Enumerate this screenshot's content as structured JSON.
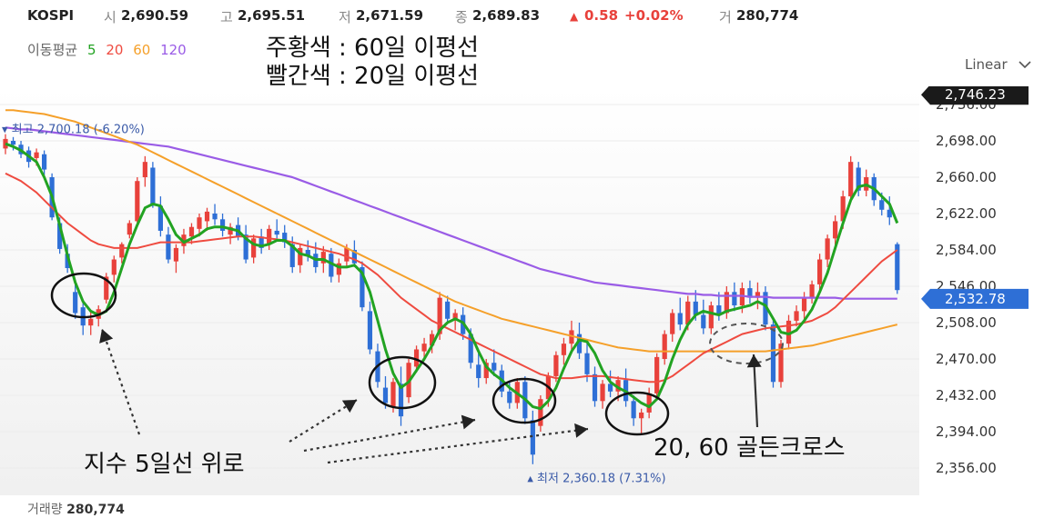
{
  "header": {
    "ticker": "KOSPI",
    "open_label": "시",
    "open": "2,690.59",
    "high_label": "고",
    "high": "2,695.51",
    "low_label": "저",
    "low": "2,671.59",
    "close_label": "종",
    "close": "2,689.83",
    "change_arrow": "▲",
    "change": "0.58",
    "change_pct": "+0.02%",
    "volume_label": "거",
    "volume": "280,774"
  },
  "ma_legend": {
    "label": "이동평균",
    "p5": "5",
    "p20": "20",
    "p60": "60",
    "p120": "120"
  },
  "scale_menu": {
    "label": "Linear",
    "icon": "chevron-down-icon"
  },
  "annotations": {
    "title_line1": "주황색 : 60일 이평선",
    "title_line2": "빨간색 : 20일 이평선",
    "bottom_left": "지수 5일선 위로",
    "bottom_right": "20, 60 골든크로스"
  },
  "volume_footer": {
    "label": "거래량",
    "value": "280,774"
  },
  "colors": {
    "up": "#e8413b",
    "down": "#2e6fd6",
    "ma5": "#22a322",
    "ma20": "#ef4b40",
    "ma60": "#f5a02a",
    "ma120": "#9a5ce6",
    "highlight_price": "#1a1a1a",
    "current_price": "#2e6fd6",
    "background": "#ffffff"
  },
  "chart_data": {
    "type": "candlestick",
    "y_ticks": [
      "2,356.00",
      "2,394.00",
      "2,432.00",
      "2,470.00",
      "2,508.00",
      "2,546.00",
      "2,584.00",
      "2,622.00",
      "2,660.00",
      "2,698.00",
      "2,736.00"
    ],
    "ylim": [
      2340,
      2760
    ],
    "price_tags": [
      {
        "label": "2,746.23",
        "value": 2746.23,
        "style": "highlight"
      },
      {
        "label": "2,532.78",
        "value": 2532.78,
        "style": "current"
      }
    ],
    "max_marker": {
      "label": "최고 2,700.18 (-6.20%)",
      "value": 2700.18,
      "bar_index": 0
    },
    "min_marker": {
      "label": "최저 2,360.18 (7.31%)",
      "value": 2360.18,
      "bar_index": 68
    },
    "candles": [
      [
        2690,
        2705,
        2684,
        2700
      ],
      [
        2698,
        2702,
        2688,
        2694
      ],
      [
        2694,
        2698,
        2680,
        2684
      ],
      [
        2688,
        2692,
        2670,
        2676
      ],
      [
        2680,
        2690,
        2672,
        2686
      ],
      [
        2684,
        2688,
        2662,
        2668
      ],
      [
        2660,
        2664,
        2615,
        2618
      ],
      [
        2612,
        2618,
        2580,
        2585
      ],
      [
        2580,
        2590,
        2560,
        2565
      ],
      [
        2540,
        2548,
        2512,
        2518
      ],
      [
        2524,
        2530,
        2495,
        2505
      ],
      [
        2505,
        2520,
        2495,
        2512
      ],
      [
        2512,
        2526,
        2504,
        2522
      ],
      [
        2532,
        2560,
        2528,
        2556
      ],
      [
        2558,
        2578,
        2550,
        2574
      ],
      [
        2576,
        2592,
        2570,
        2590
      ],
      [
        2600,
        2615,
        2596,
        2612
      ],
      [
        2614,
        2660,
        2610,
        2656
      ],
      [
        2660,
        2682,
        2650,
        2676
      ],
      [
        2670,
        2676,
        2628,
        2632
      ],
      [
        2630,
        2640,
        2598,
        2604
      ],
      [
        2600,
        2608,
        2570,
        2574
      ],
      [
        2572,
        2590,
        2560,
        2586
      ],
      [
        2588,
        2606,
        2580,
        2600
      ],
      [
        2598,
        2612,
        2590,
        2608
      ],
      [
        2606,
        2622,
        2598,
        2618
      ],
      [
        2614,
        2628,
        2604,
        2624
      ],
      [
        2622,
        2632,
        2610,
        2616
      ],
      [
        2616,
        2622,
        2598,
        2604
      ],
      [
        2600,
        2612,
        2590,
        2608
      ],
      [
        2610,
        2618,
        2594,
        2598
      ],
      [
        2600,
        2610,
        2570,
        2574
      ],
      [
        2576,
        2600,
        2570,
        2596
      ],
      [
        2598,
        2606,
        2580,
        2586
      ],
      [
        2590,
        2610,
        2584,
        2606
      ],
      [
        2604,
        2616,
        2596,
        2600
      ],
      [
        2602,
        2610,
        2586,
        2592
      ],
      [
        2590,
        2598,
        2560,
        2566
      ],
      [
        2568,
        2590,
        2560,
        2586
      ],
      [
        2584,
        2594,
        2572,
        2578
      ],
      [
        2580,
        2592,
        2560,
        2566
      ],
      [
        2570,
        2588,
        2560,
        2582
      ],
      [
        2580,
        2586,
        2550,
        2556
      ],
      [
        2558,
        2575,
        2550,
        2570
      ],
      [
        2572,
        2590,
        2566,
        2586
      ],
      [
        2584,
        2594,
        2566,
        2570
      ],
      [
        2566,
        2572,
        2520,
        2524
      ],
      [
        2520,
        2530,
        2475,
        2480
      ],
      [
        2478,
        2486,
        2440,
        2446
      ],
      [
        2440,
        2452,
        2418,
        2424
      ],
      [
        2420,
        2450,
        2414,
        2446
      ],
      [
        2444,
        2462,
        2400,
        2410
      ],
      [
        2430,
        2470,
        2424,
        2466
      ],
      [
        2462,
        2484,
        2456,
        2480
      ],
      [
        2478,
        2492,
        2468,
        2486
      ],
      [
        2484,
        2500,
        2476,
        2496
      ],
      [
        2496,
        2540,
        2490,
        2534
      ],
      [
        2530,
        2536,
        2508,
        2512
      ],
      [
        2512,
        2522,
        2500,
        2518
      ],
      [
        2516,
        2524,
        2490,
        2496
      ],
      [
        2496,
        2502,
        2460,
        2466
      ],
      [
        2464,
        2478,
        2440,
        2450
      ],
      [
        2450,
        2470,
        2444,
        2466
      ],
      [
        2466,
        2480,
        2452,
        2458
      ],
      [
        2458,
        2464,
        2430,
        2436
      ],
      [
        2436,
        2446,
        2418,
        2424
      ],
      [
        2424,
        2450,
        2418,
        2446
      ],
      [
        2446,
        2452,
        2402,
        2408
      ],
      [
        2406,
        2416,
        2360,
        2370
      ],
      [
        2400,
        2432,
        2394,
        2428
      ],
      [
        2428,
        2456,
        2420,
        2452
      ],
      [
        2452,
        2478,
        2446,
        2474
      ],
      [
        2474,
        2492,
        2464,
        2486
      ],
      [
        2486,
        2510,
        2476,
        2500
      ],
      [
        2496,
        2508,
        2470,
        2476
      ],
      [
        2476,
        2490,
        2446,
        2454
      ],
      [
        2454,
        2462,
        2420,
        2426
      ],
      [
        2426,
        2448,
        2418,
        2444
      ],
      [
        2444,
        2458,
        2430,
        2436
      ],
      [
        2436,
        2452,
        2426,
        2448
      ],
      [
        2448,
        2460,
        2420,
        2426
      ],
      [
        2426,
        2432,
        2400,
        2408
      ],
      [
        2408,
        2418,
        2392,
        2414
      ],
      [
        2414,
        2440,
        2408,
        2434
      ],
      [
        2434,
        2476,
        2428,
        2472
      ],
      [
        2470,
        2500,
        2464,
        2496
      ],
      [
        2496,
        2522,
        2488,
        2518
      ],
      [
        2518,
        2534,
        2500,
        2506
      ],
      [
        2506,
        2536,
        2500,
        2530
      ],
      [
        2530,
        2542,
        2510,
        2516
      ],
      [
        2516,
        2532,
        2496,
        2502
      ],
      [
        2502,
        2530,
        2496,
        2526
      ],
      [
        2526,
        2540,
        2510,
        2516
      ],
      [
        2518,
        2546,
        2512,
        2540
      ],
      [
        2540,
        2550,
        2520,
        2526
      ],
      [
        2526,
        2550,
        2518,
        2544
      ],
      [
        2544,
        2552,
        2528,
        2534
      ],
      [
        2534,
        2550,
        2522,
        2540
      ],
      [
        2540,
        2546,
        2500,
        2506
      ],
      [
        2506,
        2512,
        2440,
        2446
      ],
      [
        2446,
        2490,
        2440,
        2486
      ],
      [
        2486,
        2516,
        2480,
        2510
      ],
      [
        2510,
        2526,
        2504,
        2520
      ],
      [
        2520,
        2540,
        2512,
        2534
      ],
      [
        2534,
        2552,
        2528,
        2548
      ],
      [
        2548,
        2580,
        2540,
        2574
      ],
      [
        2574,
        2600,
        2566,
        2596
      ],
      [
        2596,
        2620,
        2588,
        2614
      ],
      [
        2614,
        2646,
        2606,
        2640
      ],
      [
        2640,
        2682,
        2634,
        2676
      ],
      [
        2670,
        2676,
        2640,
        2646
      ],
      [
        2646,
        2668,
        2640,
        2660
      ],
      [
        2660,
        2664,
        2630,
        2636
      ],
      [
        2636,
        2644,
        2620,
        2626
      ],
      [
        2626,
        2640,
        2610,
        2618
      ],
      [
        2590,
        2592,
        2538,
        2542
      ]
    ],
    "series": [
      {
        "name": "5",
        "key": "ma5",
        "values": [
          2695,
          2692,
          2688,
          2682,
          2676,
          2660,
          2640,
          2610,
          2578,
          2550,
          2530,
          2520,
          2516,
          2520,
          2540,
          2565,
          2590,
          2610,
          2628,
          2632,
          2630,
          2616,
          2600,
          2592,
          2596,
          2600,
          2606,
          2608,
          2608,
          2606,
          2604,
          2596,
          2590,
          2588,
          2590,
          2594,
          2594,
          2588,
          2580,
          2578,
          2574,
          2574,
          2570,
          2566,
          2566,
          2568,
          2560,
          2540,
          2510,
          2480,
          2455,
          2440,
          2446,
          2458,
          2470,
          2484,
          2500,
          2508,
          2512,
          2508,
          2496,
          2478,
          2462,
          2454,
          2448,
          2440,
          2434,
          2428,
          2420,
          2418,
          2426,
          2440,
          2460,
          2478,
          2490,
          2488,
          2476,
          2458,
          2446,
          2440,
          2436,
          2430,
          2424,
          2420,
          2428,
          2446,
          2470,
          2490,
          2506,
          2516,
          2520,
          2518,
          2516,
          2520,
          2522,
          2524,
          2526,
          2530,
          2526,
          2512,
          2498,
          2496,
          2500,
          2510,
          2522,
          2540,
          2560,
          2586,
          2612,
          2636,
          2650,
          2652,
          2648,
          2640,
          2632,
          2612
        ]
      },
      {
        "name": "20",
        "key": "ma20",
        "values": [
          2664,
          2660,
          2656,
          2650,
          2644,
          2636,
          2628,
          2620,
          2612,
          2606,
          2600,
          2594,
          2590,
          2588,
          2586,
          2586,
          2586,
          2586,
          2588,
          2590,
          2592,
          2592,
          2592,
          2592,
          2592,
          2593,
          2594,
          2595,
          2596,
          2597,
          2598,
          2598,
          2598,
          2597,
          2596,
          2595,
          2594,
          2592,
          2590,
          2588,
          2586,
          2584,
          2582,
          2580,
          2577,
          2574,
          2570,
          2564,
          2558,
          2550,
          2542,
          2534,
          2528,
          2522,
          2516,
          2510,
          2506,
          2502,
          2498,
          2494,
          2490,
          2486,
          2482,
          2478,
          2474,
          2470,
          2466,
          2462,
          2458,
          2454,
          2452,
          2450,
          2450,
          2450,
          2451,
          2452,
          2452,
          2452,
          2451,
          2450,
          2449,
          2448,
          2447,
          2446,
          2446,
          2448,
          2452,
          2458,
          2464,
          2470,
          2476,
          2480,
          2484,
          2488,
          2492,
          2496,
          2498,
          2500,
          2502,
          2503,
          2504,
          2505,
          2506,
          2508,
          2510,
          2514,
          2518,
          2524,
          2532,
          2540,
          2548,
          2556,
          2564,
          2572,
          2578,
          2584
        ]
      },
      {
        "name": "60",
        "key": "ma60",
        "values": [
          2730,
          2730,
          2729,
          2728,
          2727,
          2726,
          2724,
          2722,
          2720,
          2718,
          2715,
          2712,
          2709,
          2706,
          2703,
          2700,
          2697,
          2694,
          2690,
          2686,
          2682,
          2678,
          2674,
          2670,
          2666,
          2662,
          2658,
          2654,
          2650,
          2646,
          2642,
          2638,
          2634,
          2630,
          2626,
          2622,
          2618,
          2614,
          2610,
          2606,
          2602,
          2598,
          2594,
          2590,
          2586,
          2582,
          2578,
          2574,
          2570,
          2566,
          2562,
          2558,
          2554,
          2550,
          2546,
          2542,
          2538,
          2534,
          2530,
          2527,
          2524,
          2521,
          2518,
          2515,
          2512,
          2510,
          2508,
          2506,
          2504,
          2502,
          2500,
          2498,
          2496,
          2494,
          2492,
          2490,
          2488,
          2486,
          2484,
          2482,
          2481,
          2480,
          2479,
          2478,
          2478,
          2478,
          2478,
          2478,
          2478,
          2478,
          2478,
          2478,
          2478,
          2478,
          2478,
          2478,
          2478,
          2478,
          2478,
          2479,
          2480,
          2481,
          2482,
          2483,
          2484,
          2486,
          2488,
          2490,
          2492,
          2494,
          2496,
          2498,
          2500,
          2502,
          2504,
          2506
        ]
      },
      {
        "name": "120",
        "key": "ma120",
        "values": [
          2712,
          2711,
          2710,
          2710,
          2709,
          2708,
          2707,
          2706,
          2705,
          2704,
          2703,
          2702,
          2701,
          2700,
          2699,
          2698,
          2697,
          2696,
          2695,
          2694,
          2693,
          2692,
          2690,
          2688,
          2686,
          2684,
          2682,
          2680,
          2678,
          2676,
          2674,
          2672,
          2670,
          2668,
          2666,
          2664,
          2662,
          2660,
          2657,
          2654,
          2651,
          2648,
          2645,
          2642,
          2639,
          2636,
          2633,
          2630,
          2627,
          2624,
          2621,
          2618,
          2615,
          2612,
          2609,
          2606,
          2603,
          2600,
          2597,
          2594,
          2591,
          2588,
          2585,
          2582,
          2579,
          2576,
          2573,
          2570,
          2567,
          2564,
          2562,
          2560,
          2558,
          2556,
          2554,
          2552,
          2550,
          2549,
          2548,
          2547,
          2546,
          2545,
          2544,
          2543,
          2542,
          2541,
          2540,
          2539,
          2538,
          2538,
          2537,
          2537,
          2536,
          2536,
          2536,
          2536,
          2535,
          2535,
          2535,
          2534,
          2534,
          2534,
          2534,
          2534,
          2534,
          2534,
          2534,
          2534,
          2533,
          2533,
          2533,
          2533,
          2533,
          2533,
          2533,
          2533
        ]
      }
    ]
  }
}
